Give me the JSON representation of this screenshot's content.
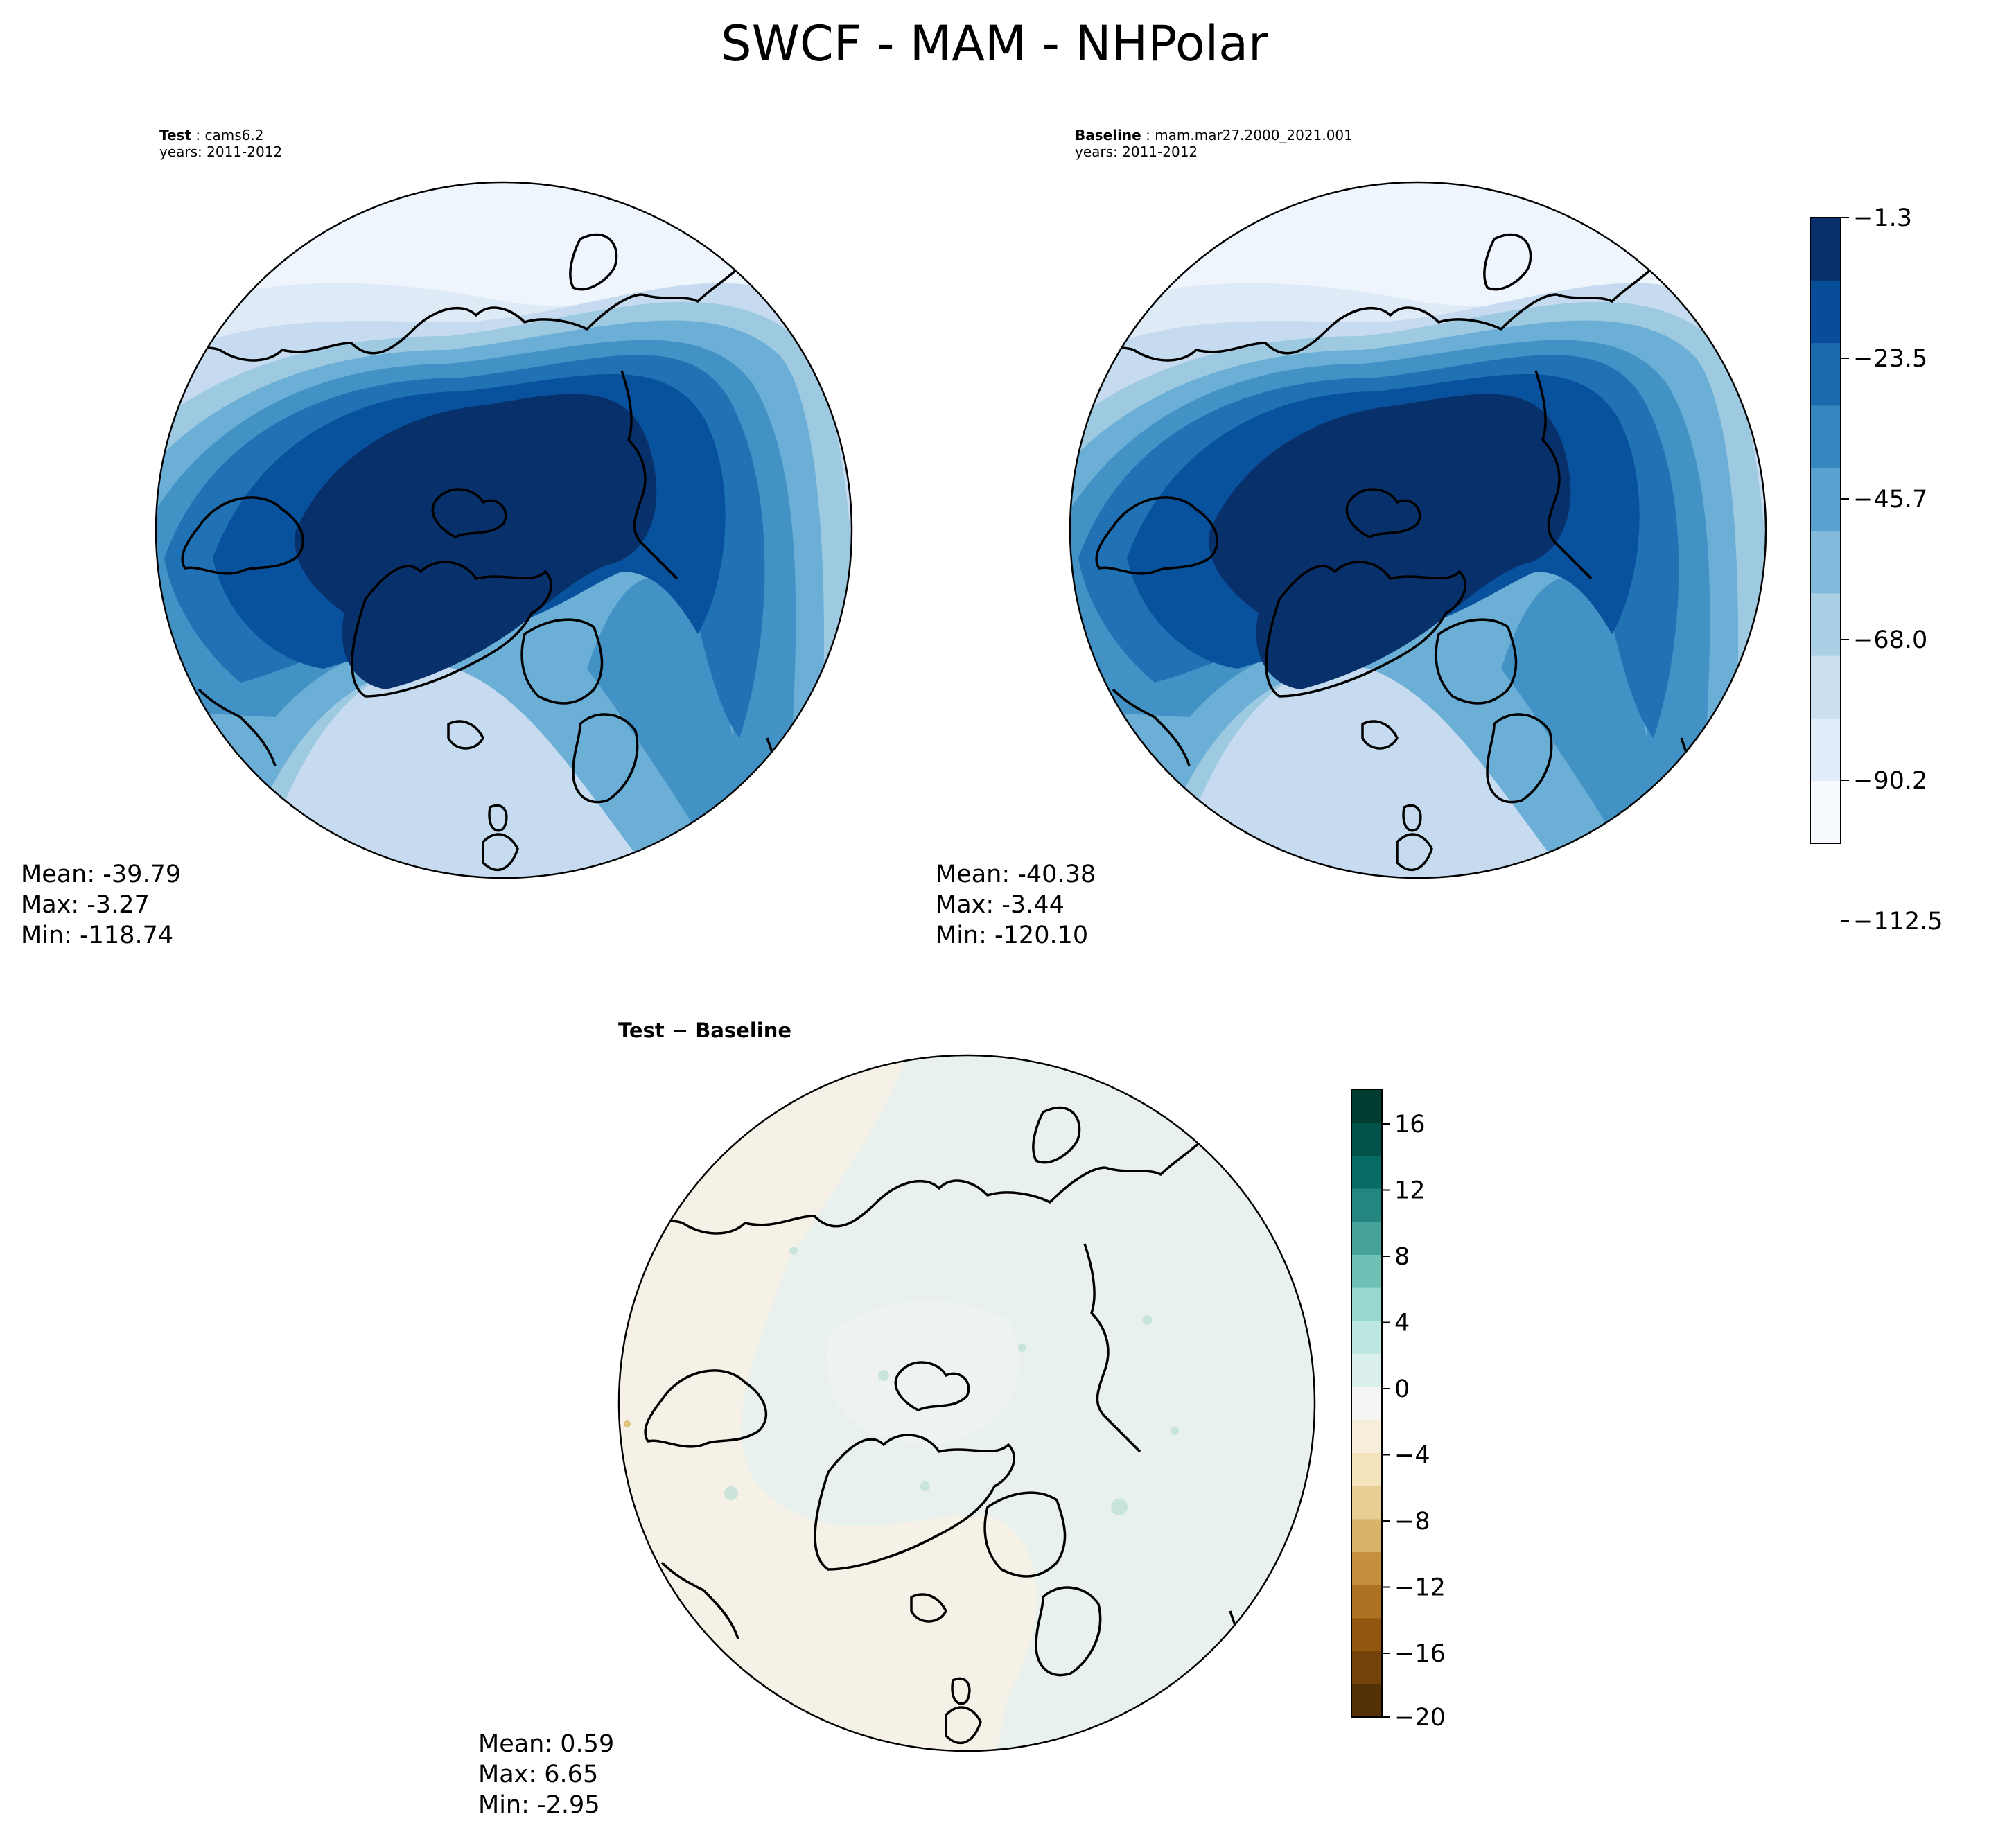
{
  "figure": {
    "title": "SWCF - MAM - NHPolar"
  },
  "panels": [
    {
      "key": "test",
      "title_bold": "Test",
      "title_sep": " : ",
      "title_value": "cams6.2",
      "subtitle": "years: 2011-2012",
      "stats": {
        "mean": "Mean: -39.79",
        "max": "Max: -3.27",
        "min": "Min: -118.74"
      }
    },
    {
      "key": "baseline",
      "title_bold": "Baseline",
      "title_sep": " : ",
      "title_value": "mam.mar27.2000_2021.001",
      "subtitle": "years: 2011-2012",
      "stats": {
        "mean": "Mean: -40.38",
        "max": "Max: -3.44",
        "min": "Min: -120.10"
      }
    },
    {
      "key": "diff",
      "title_bold": "Test − Baseline",
      "stats": {
        "mean": "Mean:  0.59",
        "max": "Max:  6.65",
        "min": "Min: -2.95"
      }
    }
  ],
  "colorbars": {
    "main": {
      "colors": [
        "#f7fbff",
        "#deebf7",
        "#c6dbef",
        "#9ecae1",
        "#6baed6",
        "#4292c6",
        "#2171b5",
        "#08519c",
        "#08306b"
      ],
      "ticks": [
        "−1.3",
        "−23.5",
        "−45.7",
        "−68.0",
        "−90.2",
        "−112.5"
      ]
    },
    "diff": {
      "colors": [
        "#543005",
        "#8c510a",
        "#bf812d",
        "#dfc27d",
        "#f6e8c3",
        "#f5f5f5",
        "#c7eae5",
        "#80cdc1",
        "#35978f",
        "#01665e",
        "#003c30"
      ],
      "ticks": [
        "16",
        "12",
        "8",
        "4",
        "0",
        "−4",
        "−8",
        "−12",
        "−16",
        "−20"
      ]
    }
  },
  "map_colors": {
    "ocean_light": "#eef5fc",
    "deep": "#08306b",
    "diff_base": "#e8f1ee",
    "diff_sand": "#f6f1e4"
  }
}
